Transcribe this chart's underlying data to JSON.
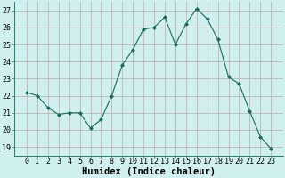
{
  "x": [
    0,
    1,
    2,
    3,
    4,
    5,
    6,
    7,
    8,
    9,
    10,
    11,
    12,
    13,
    14,
    15,
    16,
    17,
    18,
    19,
    20,
    21,
    22,
    23
  ],
  "y": [
    22.2,
    22.0,
    21.3,
    20.9,
    21.0,
    21.0,
    20.1,
    20.6,
    22.0,
    23.8,
    24.7,
    25.9,
    26.0,
    26.6,
    25.0,
    26.2,
    27.1,
    26.5,
    25.3,
    23.1,
    22.7,
    21.1,
    19.6,
    18.9
  ],
  "line_color": "#1a6b5a",
  "marker": "D",
  "marker_size": 2.0,
  "bg_color": "#cff0ee",
  "grid_color": "#c0a8a8",
  "xlabel": "Humidex (Indice chaleur)",
  "ylim": [
    18.5,
    27.5
  ],
  "yticks": [
    19,
    20,
    21,
    22,
    23,
    24,
    25,
    26,
    27
  ],
  "xticks": [
    0,
    1,
    2,
    3,
    4,
    5,
    6,
    7,
    8,
    9,
    10,
    11,
    12,
    13,
    14,
    15,
    16,
    17,
    18,
    19,
    20,
    21,
    22,
    23
  ],
  "xlabel_fontsize": 7.5,
  "tick_fontsize": 6.0
}
